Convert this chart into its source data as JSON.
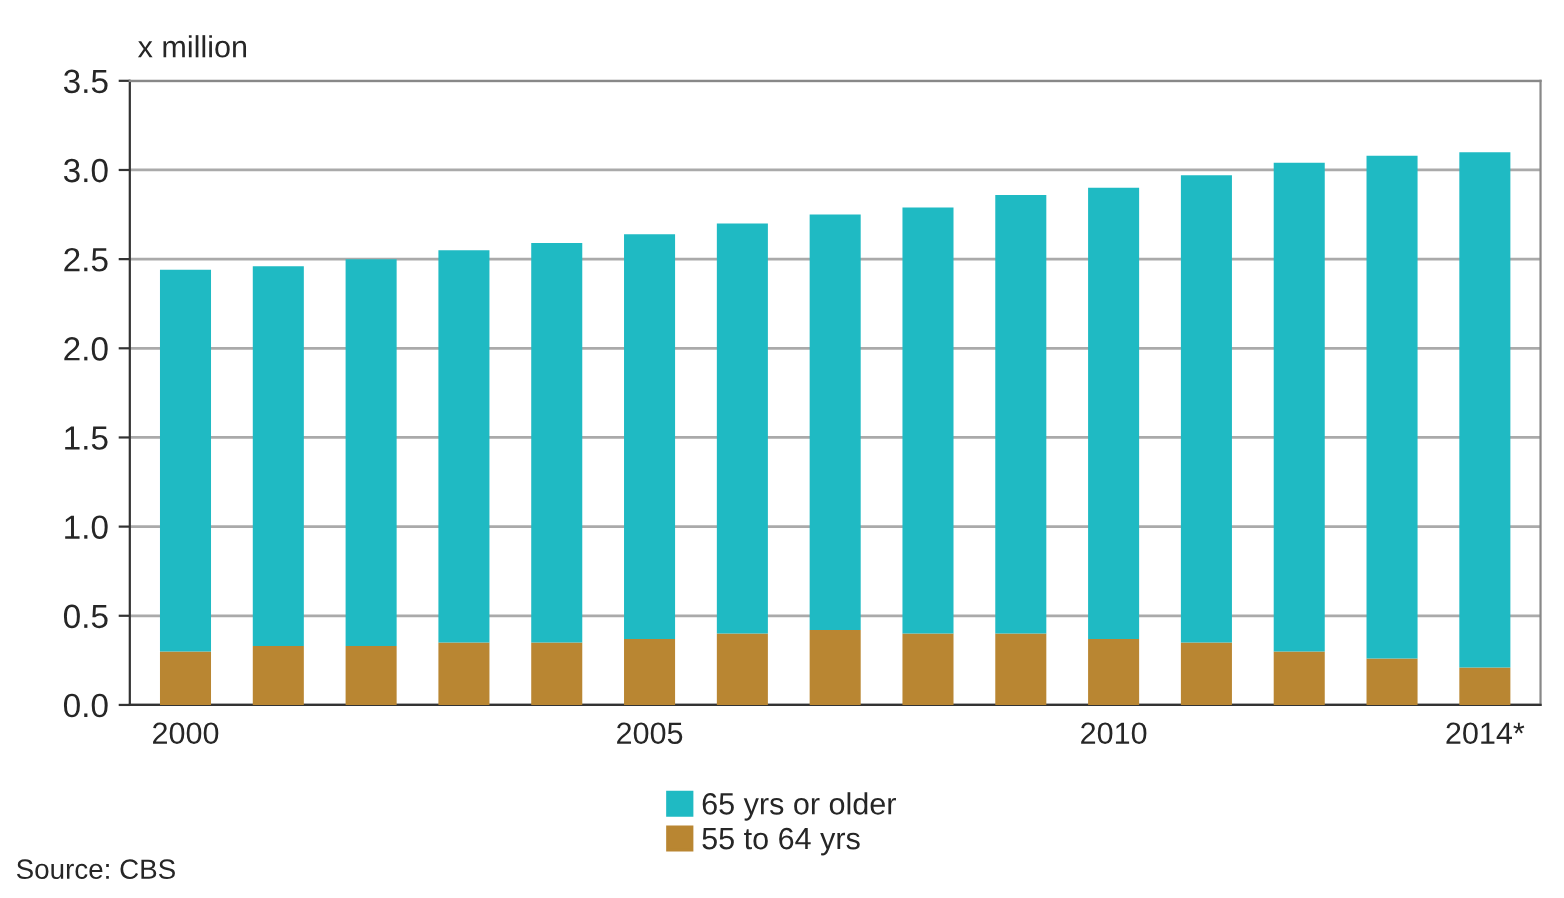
{
  "chart_data": {
    "type": "bar",
    "stacked": true,
    "ylabel": "x million",
    "categories": [
      "2000",
      null,
      null,
      null,
      null,
      "2005",
      null,
      null,
      null,
      null,
      "2010",
      null,
      null,
      null,
      "2014*"
    ],
    "series": [
      {
        "name": "55 to 64 yrs",
        "color": "#b98632",
        "values": [
          0.3,
          0.33,
          0.33,
          0.35,
          0.35,
          0.37,
          0.4,
          0.42,
          0.4,
          0.4,
          0.37,
          0.35,
          0.3,
          0.26,
          0.21
        ]
      },
      {
        "name": "65 yrs or older",
        "color": "#1fbac3",
        "values": [
          2.14,
          2.13,
          2.17,
          2.2,
          2.24,
          2.27,
          2.3,
          2.33,
          2.39,
          2.46,
          2.53,
          2.62,
          2.74,
          2.82,
          2.89
        ]
      }
    ],
    "ylim": [
      0,
      3.5
    ],
    "yticks": [
      {
        "value": 0,
        "label": "0.0"
      },
      0.5,
      {
        "value": 1,
        "label": "1.0"
      },
      1.5,
      {
        "value": 2,
        "label": "2.0"
      },
      2.5,
      {
        "value": 3,
        "label": "3.0"
      },
      3.5
    ],
    "grid": "y",
    "legend": "bottom",
    "annotations": [
      "Source: CBS"
    ]
  }
}
